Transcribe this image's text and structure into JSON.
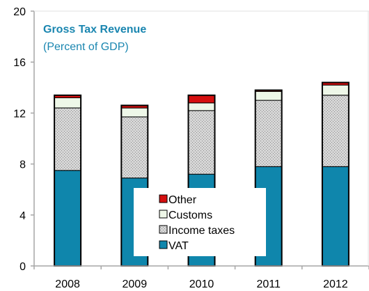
{
  "chart_data": {
    "type": "bar",
    "stacked": true,
    "title": "Gross Tax Revenue",
    "subtitle": "(Percent of GDP)",
    "xlabel": "",
    "ylabel": "",
    "categories": [
      "2008",
      "2009",
      "2010",
      "2011",
      "2012"
    ],
    "ylim": [
      0,
      20
    ],
    "yticks": [
      "0",
      "4",
      "8",
      "12",
      "16",
      "20"
    ],
    "grid": false,
    "legend_position": "bottom-center",
    "series": [
      {
        "name": "VAT",
        "color": "#0f86ac",
        "values": [
          7.5,
          6.9,
          7.2,
          7.8,
          7.8
        ]
      },
      {
        "name": "Income taxes",
        "color": "#c8c8c8",
        "values": [
          4.9,
          4.8,
          5.0,
          5.2,
          5.6
        ]
      },
      {
        "name": "Customs",
        "color": "#eef7e8",
        "values": [
          0.8,
          0.7,
          0.6,
          0.7,
          0.8
        ]
      },
      {
        "name": "Other",
        "color": "#d50f0f",
        "values": [
          0.2,
          0.2,
          0.6,
          0.1,
          0.2
        ]
      }
    ],
    "legend_order": [
      "Other",
      "Customs",
      "Income taxes",
      "VAT"
    ]
  }
}
